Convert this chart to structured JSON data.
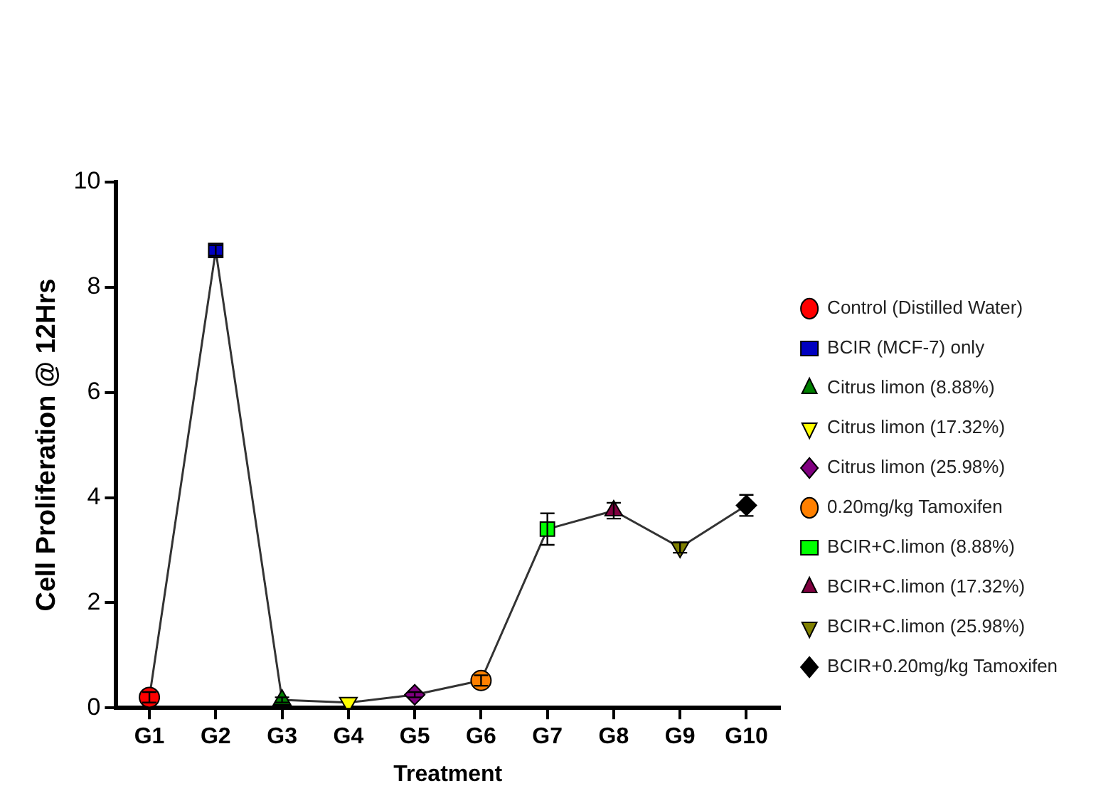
{
  "chart_data": {
    "type": "scatter",
    "xlabel": "Treatment",
    "ylabel": "Cell Proliferation @ 12Hrs",
    "categories": [
      "G1",
      "G2",
      "G3",
      "G4",
      "G5",
      "G6",
      "G7",
      "G8",
      "G9",
      "G10"
    ],
    "ylim": [
      0,
      10
    ],
    "yticks": [
      0,
      2,
      4,
      6,
      8,
      10
    ],
    "grid": false,
    "legend": "right",
    "series": [
      {
        "type": "line",
        "color": "#333333",
        "values": [
          0.2,
          8.7,
          0.15,
          0.1,
          0.25,
          0.52,
          3.4,
          3.75,
          3.05,
          3.85
        ]
      },
      {
        "name": "Control (Distilled Water)",
        "color": "#ff0000",
        "marker": "circle",
        "x": [
          "G1"
        ],
        "values": [
          0.2
        ],
        "errors": [
          0.1
        ]
      },
      {
        "name": "BCIR (MCF-7) only",
        "color": "#0000c0",
        "marker": "square",
        "x": [
          "G2"
        ],
        "values": [
          8.7
        ],
        "errors": [
          0.1
        ]
      },
      {
        "name": "Citrus limon (8.88%)",
        "color": "#007f00",
        "marker": "triangle",
        "x": [
          "G3"
        ],
        "values": [
          0.15
        ],
        "errors": [
          0.05
        ]
      },
      {
        "name": "Citrus limon (17.32%)",
        "color": "#ffff00",
        "marker": "triangle-down",
        "x": [
          "G4"
        ],
        "values": [
          0.1
        ]
      },
      {
        "name": "Citrus limon (25.98%)",
        "color": "#800080",
        "marker": "diamond",
        "x": [
          "G5"
        ],
        "values": [
          0.25
        ],
        "errors": [
          0.05
        ]
      },
      {
        "name": "0.20mg/kg Tamoxifen",
        "color": "#ff8000",
        "marker": "circle",
        "x": [
          "G6"
        ],
        "values": [
          0.52
        ],
        "errors": [
          0.1
        ]
      },
      {
        "name": "BCIR+C.limon (8.88%)",
        "color": "#00ff00",
        "marker": "square",
        "x": [
          "G7"
        ],
        "values": [
          3.4
        ],
        "errors": [
          0.3
        ]
      },
      {
        "name": "BCIR+C.limon (17.32%)",
        "color": "#800040",
        "marker": "triangle",
        "x": [
          "G8"
        ],
        "values": [
          3.75
        ],
        "errors": [
          0.15
        ]
      },
      {
        "name": "BCIR+C.limon (25.98%)",
        "color": "#808000",
        "marker": "triangle-down",
        "x": [
          "G9"
        ],
        "values": [
          3.05
        ],
        "errors": [
          0.1
        ]
      },
      {
        "name": "BCIR+0.20mg/kg Tamoxifen",
        "color": "#000000",
        "marker": "diamond",
        "x": [
          "G10"
        ],
        "values": [
          3.85
        ],
        "errors": [
          0.2
        ]
      }
    ]
  }
}
